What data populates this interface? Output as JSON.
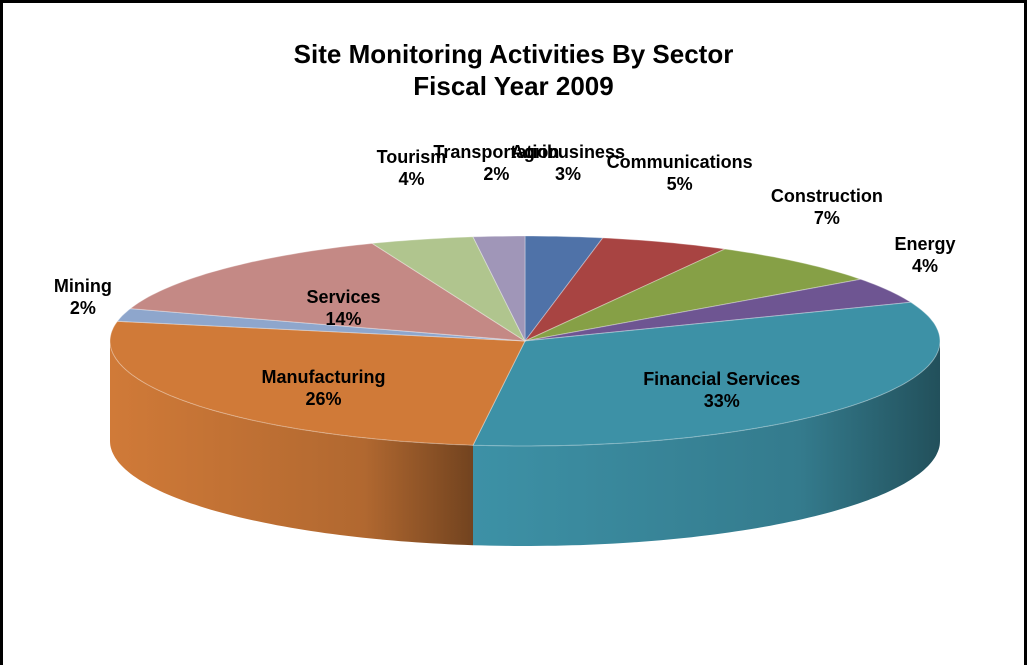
{
  "chart_data": {
    "type": "pie",
    "title": "Site Monitoring Activities By Sector",
    "subtitle": "Fiscal Year 2009",
    "categories": [
      "Agribusiness",
      "Communications",
      "Construction",
      "Energy",
      "Financial Services",
      "Manufacturing",
      "Mining",
      "Services",
      "Tourism",
      "Transportation"
    ],
    "values": [
      3,
      5,
      7,
      4,
      33,
      26,
      2,
      14,
      4,
      2
    ],
    "value_labels": [
      "3%",
      "5%",
      "7%",
      "4%",
      "33%",
      "26%",
      "2%",
      "14%",
      "4%",
      "2%"
    ],
    "colors": [
      "#4f72a8",
      "#a84442",
      "#86a046",
      "#6e5592",
      "#3d91a6",
      "#d07a38",
      "#8ea6cc",
      "#c48985",
      "#b0c58e",
      "#a096b8"
    ]
  }
}
